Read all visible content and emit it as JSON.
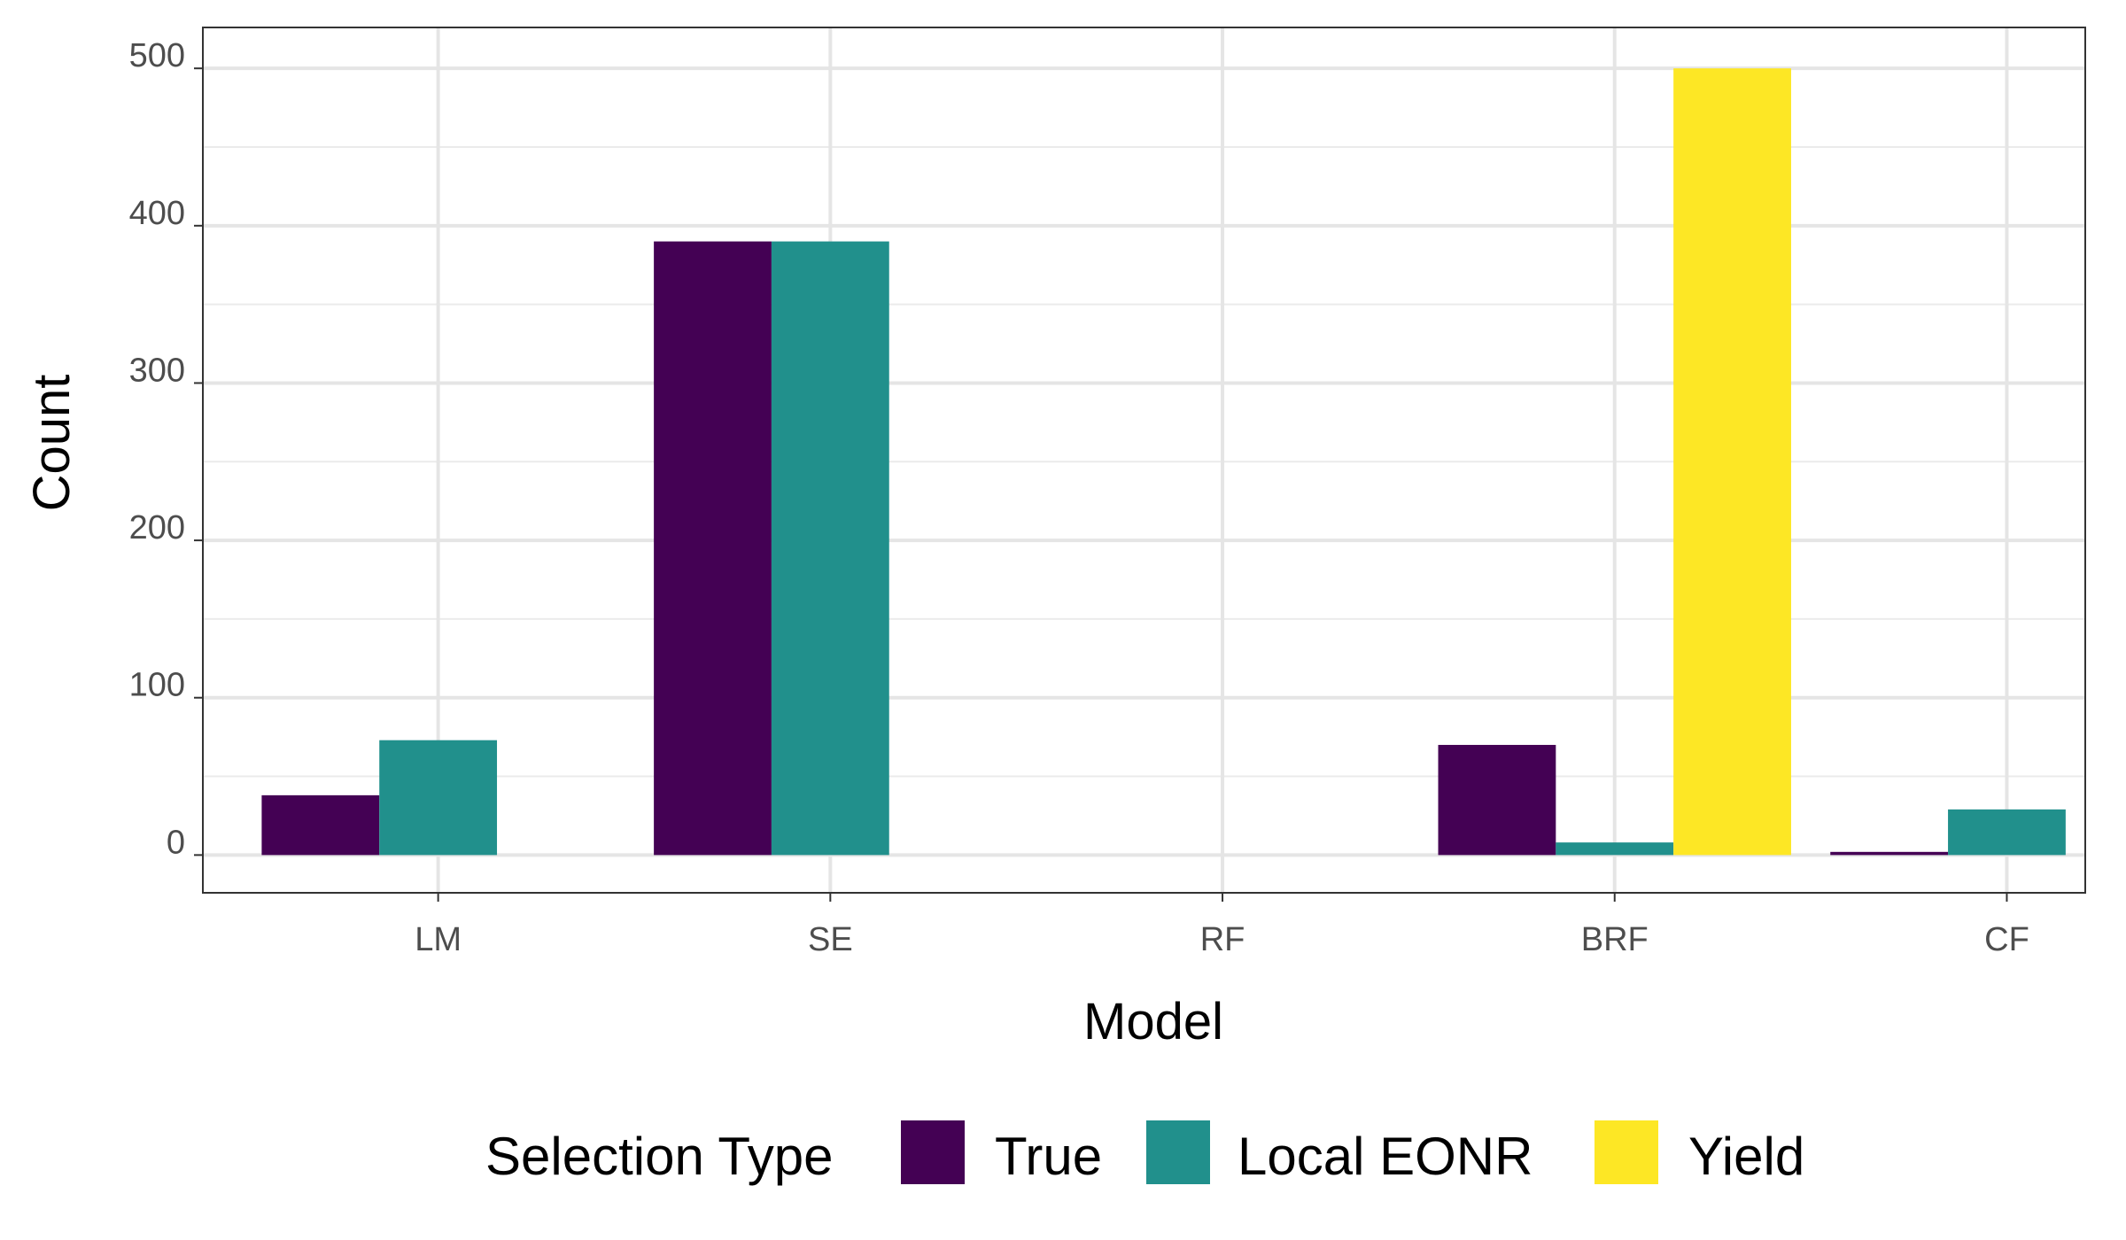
{
  "chart_data": {
    "type": "bar",
    "xlabel": "Model",
    "ylabel": "Count",
    "categories": [
      "LM",
      "SE",
      "RF",
      "BRF",
      "CF"
    ],
    "series": [
      {
        "name": "True",
        "values": [
          38,
          390,
          0,
          70,
          2
        ],
        "color": "#440154"
      },
      {
        "name": "Local EONR",
        "values": [
          73,
          390,
          0,
          8,
          29
        ],
        "color": "#21908C"
      },
      {
        "name": "Yield",
        "values": [
          0,
          0,
          0,
          500,
          0
        ],
        "color": "#FDE725"
      }
    ],
    "ylim": [
      -24,
      526
    ],
    "yticks": [
      0,
      100,
      200,
      300,
      400,
      500
    ],
    "grid": true,
    "legend": {
      "title": "Selection Type",
      "position": "bottom"
    }
  }
}
